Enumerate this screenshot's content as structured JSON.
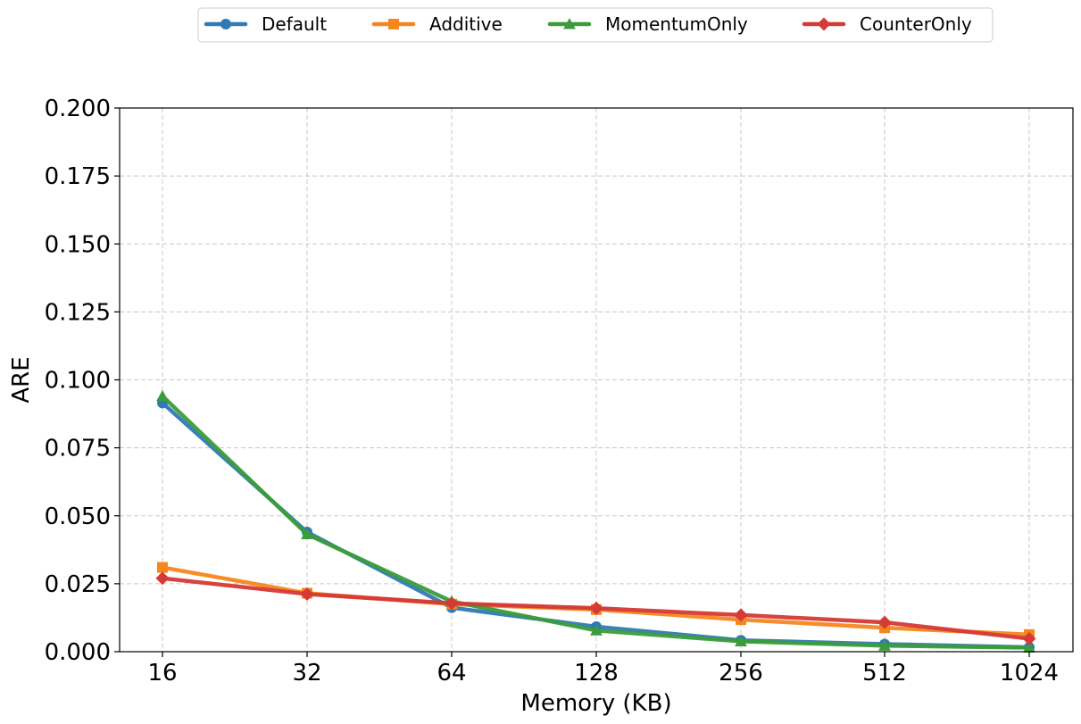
{
  "chart_data": {
    "type": "line",
    "xlabel": "Memory (KB)",
    "ylabel": "ARE",
    "categories": [
      "16",
      "32",
      "64",
      "128",
      "256",
      "512",
      "1024"
    ],
    "ylim": [
      0,
      0.2
    ],
    "yticks": [
      0.0,
      0.025,
      0.05,
      0.075,
      0.1,
      0.125,
      0.15,
      0.175,
      0.2
    ],
    "ytick_labels": [
      "0.000",
      "0.025",
      "0.050",
      "0.075",
      "0.100",
      "0.125",
      "0.150",
      "0.175",
      "0.200"
    ],
    "grid": true,
    "legend_position": "top-center",
    "series": [
      {
        "name": "Default",
        "color": "#2f7ab5",
        "marker": "circle",
        "values": [
          0.0915,
          0.044,
          0.0162,
          0.0092,
          0.0042,
          0.0028,
          0.0016
        ]
      },
      {
        "name": "Additive",
        "color": "#f5861f",
        "marker": "square",
        "values": [
          0.031,
          0.0215,
          0.0175,
          0.0155,
          0.0118,
          0.0088,
          0.0063
        ]
      },
      {
        "name": "MomentumOnly",
        "color": "#3a9c3a",
        "marker": "triangle",
        "values": [
          0.094,
          0.0432,
          0.0185,
          0.0078,
          0.0038,
          0.0022,
          0.0015
        ]
      },
      {
        "name": "CounterOnly",
        "color": "#d43a36",
        "marker": "diamond",
        "values": [
          0.027,
          0.0212,
          0.0178,
          0.016,
          0.0135,
          0.0108,
          0.0048
        ]
      }
    ]
  }
}
